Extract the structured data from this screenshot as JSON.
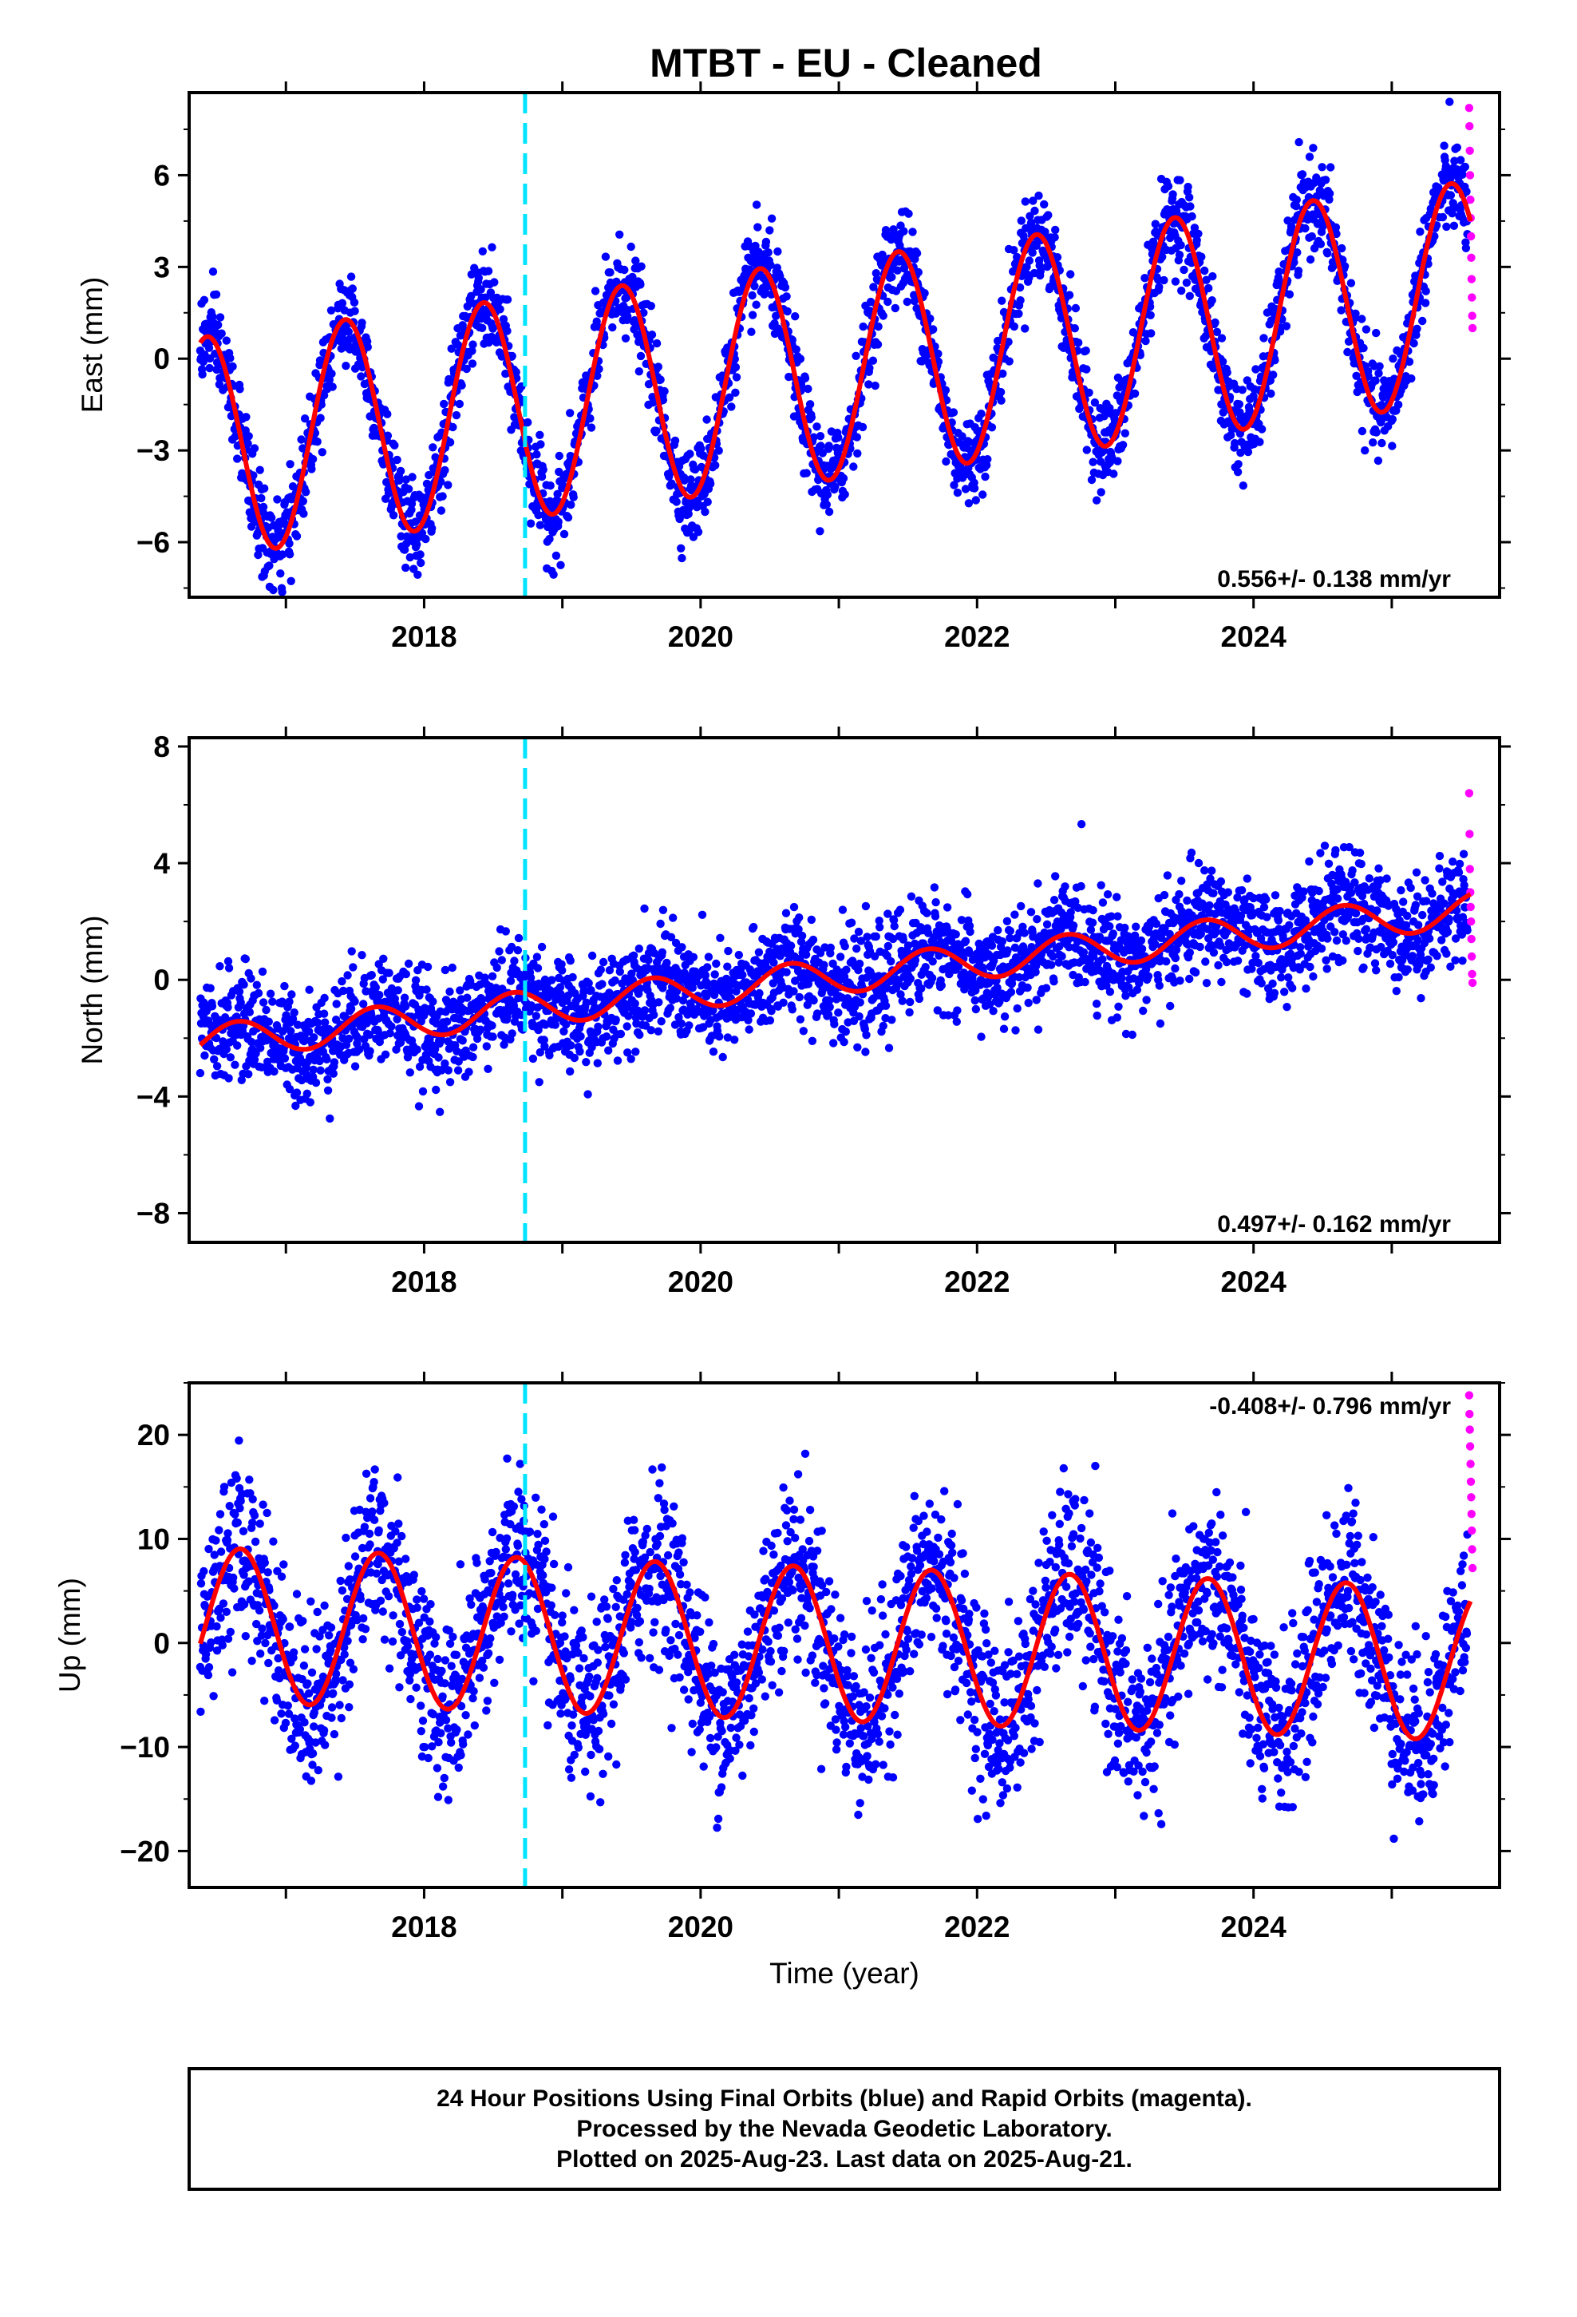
{
  "title": "MTBT  - EU - Cleaned",
  "footer": {
    "line1": "24 Hour Positions Using Final Orbits (blue) and Rapid Orbits (magenta).",
    "line2": "Processed by the Nevada Geodetic Laboratory.",
    "line3": "Plotted on 2025-Aug-23. Last data on 2025-Aug-21."
  },
  "colors": {
    "final_orbits": "#0000ff",
    "rapid_orbits": "#ff00ff",
    "model_fit": "#ff0000",
    "event_line": "#00e5ff"
  },
  "chart_data": [
    {
      "type": "scatter",
      "ylabel": "East (mm)",
      "xlabel": "",
      "xlim": [
        2016.3,
        2025.78
      ],
      "ylim": [
        -7.8,
        8.7
      ],
      "yticks": [
        -6,
        -3,
        0,
        3,
        6
      ],
      "xticks": [
        2018,
        2020,
        2022,
        2024
      ],
      "rate_label": "0.556+/- 0.138 mm/yr",
      "event_line_x": 2018.73,
      "model": {
        "offset": -2.95,
        "trend": 0.556,
        "amp": 3.6,
        "phase": 0.18
      },
      "series": [
        {
          "name": "Final Orbits",
          "x_start": 2016.38,
          "x_end": 2025.55,
          "scatter": 0.75
        },
        {
          "name": "Rapid Orbits",
          "x_start": 2025.56,
          "x_end": 2025.64,
          "values": [
            8.2,
            7.6,
            6.8,
            6.0,
            5.2,
            4.6,
            4.0,
            3.3,
            2.6,
            2.0,
            1.4,
            1.0
          ]
        }
      ]
    },
    {
      "type": "scatter",
      "ylabel": "North (mm)",
      "xlabel": "",
      "xlim": [
        2016.3,
        2025.78
      ],
      "ylim": [
        -9.0,
        8.3
      ],
      "yticks": [
        -8,
        -4,
        0,
        4,
        8
      ],
      "xticks": [
        2018,
        2020,
        2022,
        2024
      ],
      "rate_label": "0.497+/- 0.162 mm/yr",
      "event_line_x": 2018.73,
      "model": {
        "offset": -2.2,
        "trend": 0.497,
        "amp": 0.6,
        "phase": 0.4
      },
      "series": [
        {
          "name": "Final Orbits",
          "x_start": 2016.38,
          "x_end": 2025.55,
          "scatter": 0.9
        },
        {
          "name": "Rapid Orbits",
          "x_start": 2025.56,
          "x_end": 2025.64,
          "values": [
            6.4,
            5.0,
            3.8,
            3.0,
            2.5,
            2.0,
            1.4,
            0.8,
            0.2,
            -0.1
          ]
        }
      ]
    },
    {
      "type": "scatter",
      "ylabel": "Up (mm)",
      "xlabel": "Time (year)",
      "xlim": [
        2016.3,
        2025.78
      ],
      "ylim": [
        -23.5,
        25.0
      ],
      "yticks": [
        -20,
        -10,
        0,
        10,
        20
      ],
      "xticks": [
        2018,
        2020,
        2022,
        2024
      ],
      "rate_label": "-0.408+/- 0.796 mm/yr",
      "event_line_x": 2018.73,
      "model": {
        "offset": 1.8,
        "trend": -0.408,
        "amp": 7.4,
        "phase": 0.42
      },
      "series": [
        {
          "name": "Final Orbits",
          "x_start": 2016.38,
          "x_end": 2025.55,
          "scatter": 4.2
        },
        {
          "name": "Rapid Orbits",
          "x_start": 2025.56,
          "x_end": 2025.64,
          "values": [
            23.8,
            22.0,
            20.5,
            18.9,
            17.2,
            15.5,
            14.0,
            12.4,
            10.8,
            9.0,
            7.2
          ]
        }
      ]
    }
  ]
}
